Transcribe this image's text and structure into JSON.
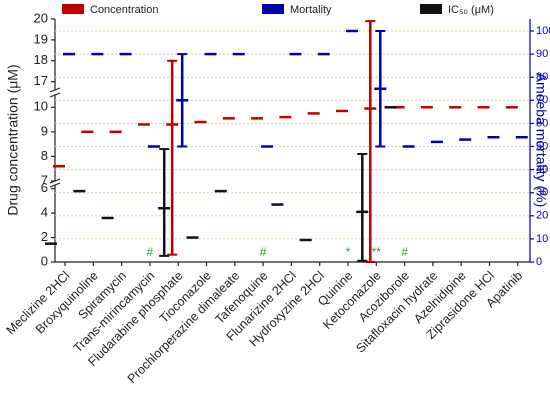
{
  "chart_data": {
    "type": "dot",
    "categories": [
      "Meclizine 2HCl",
      "Broxyquinoline",
      "Spiramycin",
      "Trans-mirincamycin",
      "Fludarabine phosphate",
      "Tioconazole",
      "Prochlorperazine dimaleate",
      "Tafenoquine",
      "Flunarizine 2HCl",
      "Hydroxyzine 2HCl",
      "Quinine",
      "Ketoconazole",
      "Acoziborole",
      "Sitafloxacin hydrate",
      "Azelnidipine",
      "Ziprasidone HCl",
      "Apatinib"
    ],
    "series": [
      {
        "name": "Concentration",
        "color": "#c00000",
        "axis": "y",
        "values": [
          7.6,
          9.0,
          9.0,
          9.3,
          9.3,
          9.4,
          9.55,
          9.55,
          9.6,
          9.75,
          9.85,
          9.95,
          10.0,
          10.0,
          10.0,
          10.0,
          10.0
        ],
        "errors": [
          null,
          null,
          null,
          null,
          8.7,
          null,
          null,
          null,
          null,
          null,
          null,
          9.95,
          null,
          null,
          null,
          null,
          null
        ]
      },
      {
        "name": "Mortality",
        "color": "#0000b0",
        "axis": "y2",
        "values": [
          90,
          90,
          90,
          50,
          70,
          90,
          90,
          50,
          90,
          90,
          100,
          75,
          50,
          52,
          53,
          54,
          54
        ],
        "errors": [
          null,
          null,
          null,
          null,
          20,
          null,
          null,
          null,
          null,
          null,
          null,
          25,
          null,
          null,
          null,
          null,
          null
        ]
      },
      {
        "name": "IC₅₀ (μM)",
        "color": "#111111",
        "axis": "y",
        "values": [
          1.5,
          5.8,
          3.6,
          null,
          4.4,
          2.0,
          5.8,
          null,
          4.7,
          1.8,
          null,
          4.1,
          10.0,
          null,
          null,
          null,
          null
        ],
        "errors": [
          null,
          null,
          null,
          null,
          3.9,
          null,
          null,
          null,
          null,
          null,
          null,
          4.0,
          null,
          null,
          null,
          null,
          null
        ]
      }
    ],
    "significance": [
      null,
      null,
      null,
      "#",
      null,
      null,
      null,
      "#",
      null,
      null,
      "*",
      "**",
      "#",
      null,
      null,
      null,
      null
    ],
    "ylabel": "Drug concentration (μM)",
    "y2label": "Amoeba mortality (%)",
    "ylim": [
      0,
      20
    ],
    "y_segments": [
      [
        0,
        6.3
      ],
      [
        7,
        10.5
      ],
      [
        16.6,
        20
      ]
    ],
    "yticks": [
      0,
      2,
      4,
      6,
      7,
      8,
      9,
      10,
      17,
      18,
      19,
      20
    ],
    "y2lim": [
      0,
      100
    ],
    "y2ticks": [
      0,
      10,
      20,
      30,
      40,
      50,
      60,
      70,
      80,
      90,
      100
    ],
    "grid": true,
    "legend": "top"
  }
}
